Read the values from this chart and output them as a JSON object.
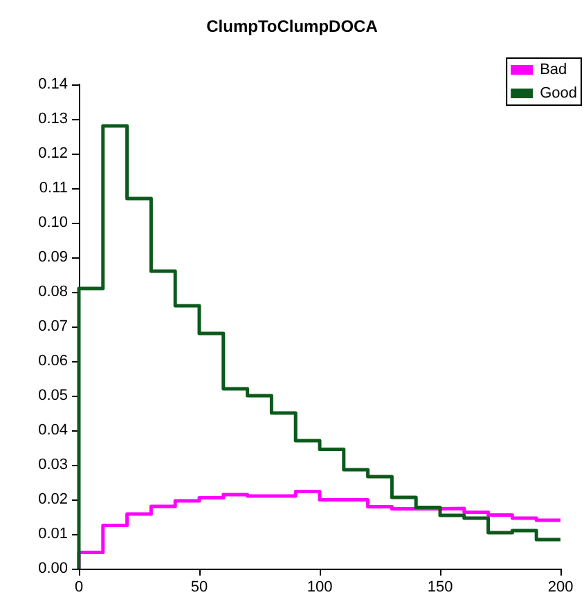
{
  "chart_data": {
    "type": "histogram",
    "title": "ClumpToClumpDOCA",
    "bins": [
      0,
      10,
      20,
      30,
      40,
      50,
      60,
      70,
      80,
      90,
      100,
      110,
      120,
      130,
      140,
      150,
      160,
      170,
      180,
      190,
      200
    ],
    "series": [
      {
        "name": "Bad",
        "color": "#ff00ff",
        "values": [
          0.0047,
          0.0125,
          0.0158,
          0.018,
          0.0196,
          0.0205,
          0.0214,
          0.021,
          0.021,
          0.0223,
          0.0199,
          0.0199,
          0.0179,
          0.0173,
          0.0173,
          0.0174,
          0.0163,
          0.0155,
          0.0146,
          0.014
        ]
      },
      {
        "name": "Good",
        "color": "#0b5a1c",
        "values": [
          0.081,
          0.128,
          0.107,
          0.086,
          0.076,
          0.068,
          0.052,
          0.05,
          0.045,
          0.037,
          0.0345,
          0.0286,
          0.0266,
          0.0206,
          0.0177,
          0.0154,
          0.0146,
          0.0104,
          0.011,
          0.0084
        ]
      }
    ],
    "xlim": [
      0,
      200
    ],
    "xticks": [
      0,
      50,
      100,
      150,
      200
    ],
    "ylim": [
      0,
      0.14
    ],
    "yticks": [
      {
        "value": 0,
        "label": "0.00"
      },
      0.01,
      0.02,
      0.03,
      0.04,
      0.05,
      0.06,
      0.07,
      0.08,
      0.09,
      {
        "value": 0.1,
        "label": "0.10"
      },
      0.11,
      0.12,
      0.13,
      0.14
    ],
    "grid": false,
    "legend": "top right"
  }
}
